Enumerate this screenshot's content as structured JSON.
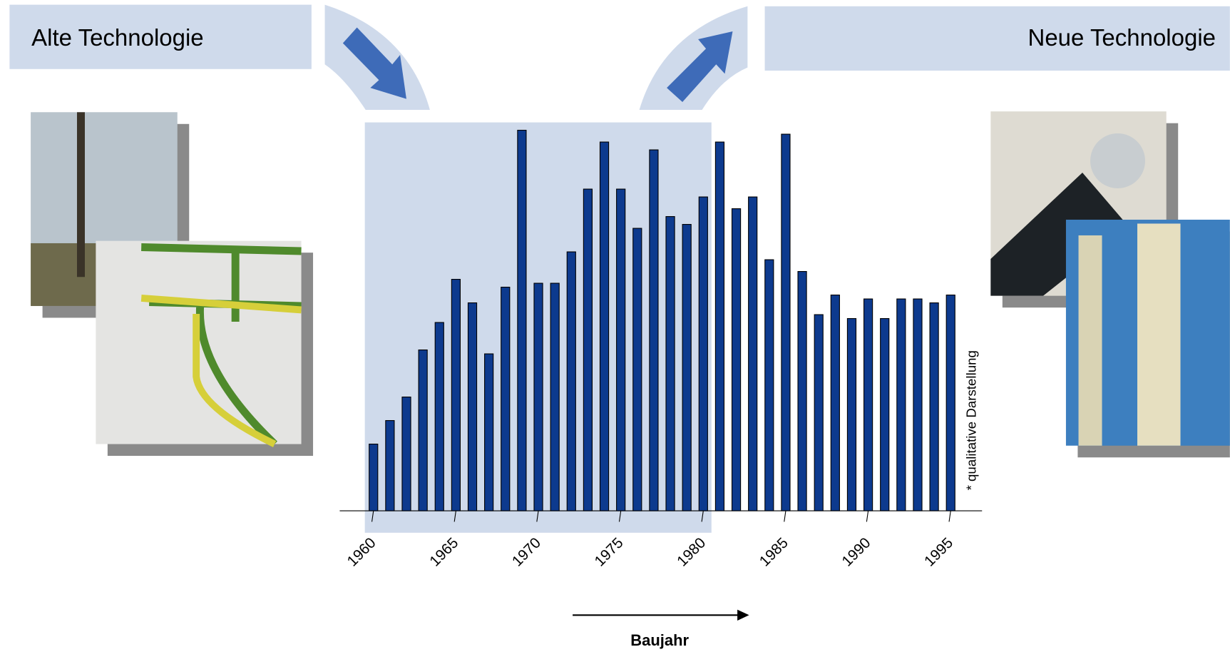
{
  "banners": {
    "left": "Alte Technologie",
    "right": "Neue Technologie"
  },
  "chart_data": {
    "type": "bar",
    "x_label": "Baujahr",
    "note": "* qualitative Darstellung",
    "x": [
      1960,
      1961,
      1962,
      1963,
      1964,
      1965,
      1966,
      1967,
      1968,
      1969,
      1970,
      1971,
      1972,
      1973,
      1974,
      1975,
      1976,
      1977,
      1978,
      1979,
      1980,
      1981,
      1982,
      1983,
      1984,
      1985,
      1986,
      1987,
      1988,
      1989,
      1990,
      1991,
      1992,
      1993,
      1994,
      1995
    ],
    "values": [
      17,
      23,
      29,
      41,
      48,
      59,
      53,
      40,
      57,
      97,
      58,
      58,
      66,
      82,
      94,
      82,
      72,
      92,
      75,
      73,
      80,
      94,
      77,
      80,
      64,
      96,
      61,
      50,
      55,
      49,
      54,
      49,
      54,
      54,
      53,
      55
    ],
    "color": "#0d3a8e",
    "xlim": [
      1959.5,
      1995.5
    ],
    "xticks": [
      1960,
      1965,
      1970,
      1975,
      1980,
      1985,
      1990,
      1995
    ],
    "ylim": [
      0,
      100
    ]
  }
}
